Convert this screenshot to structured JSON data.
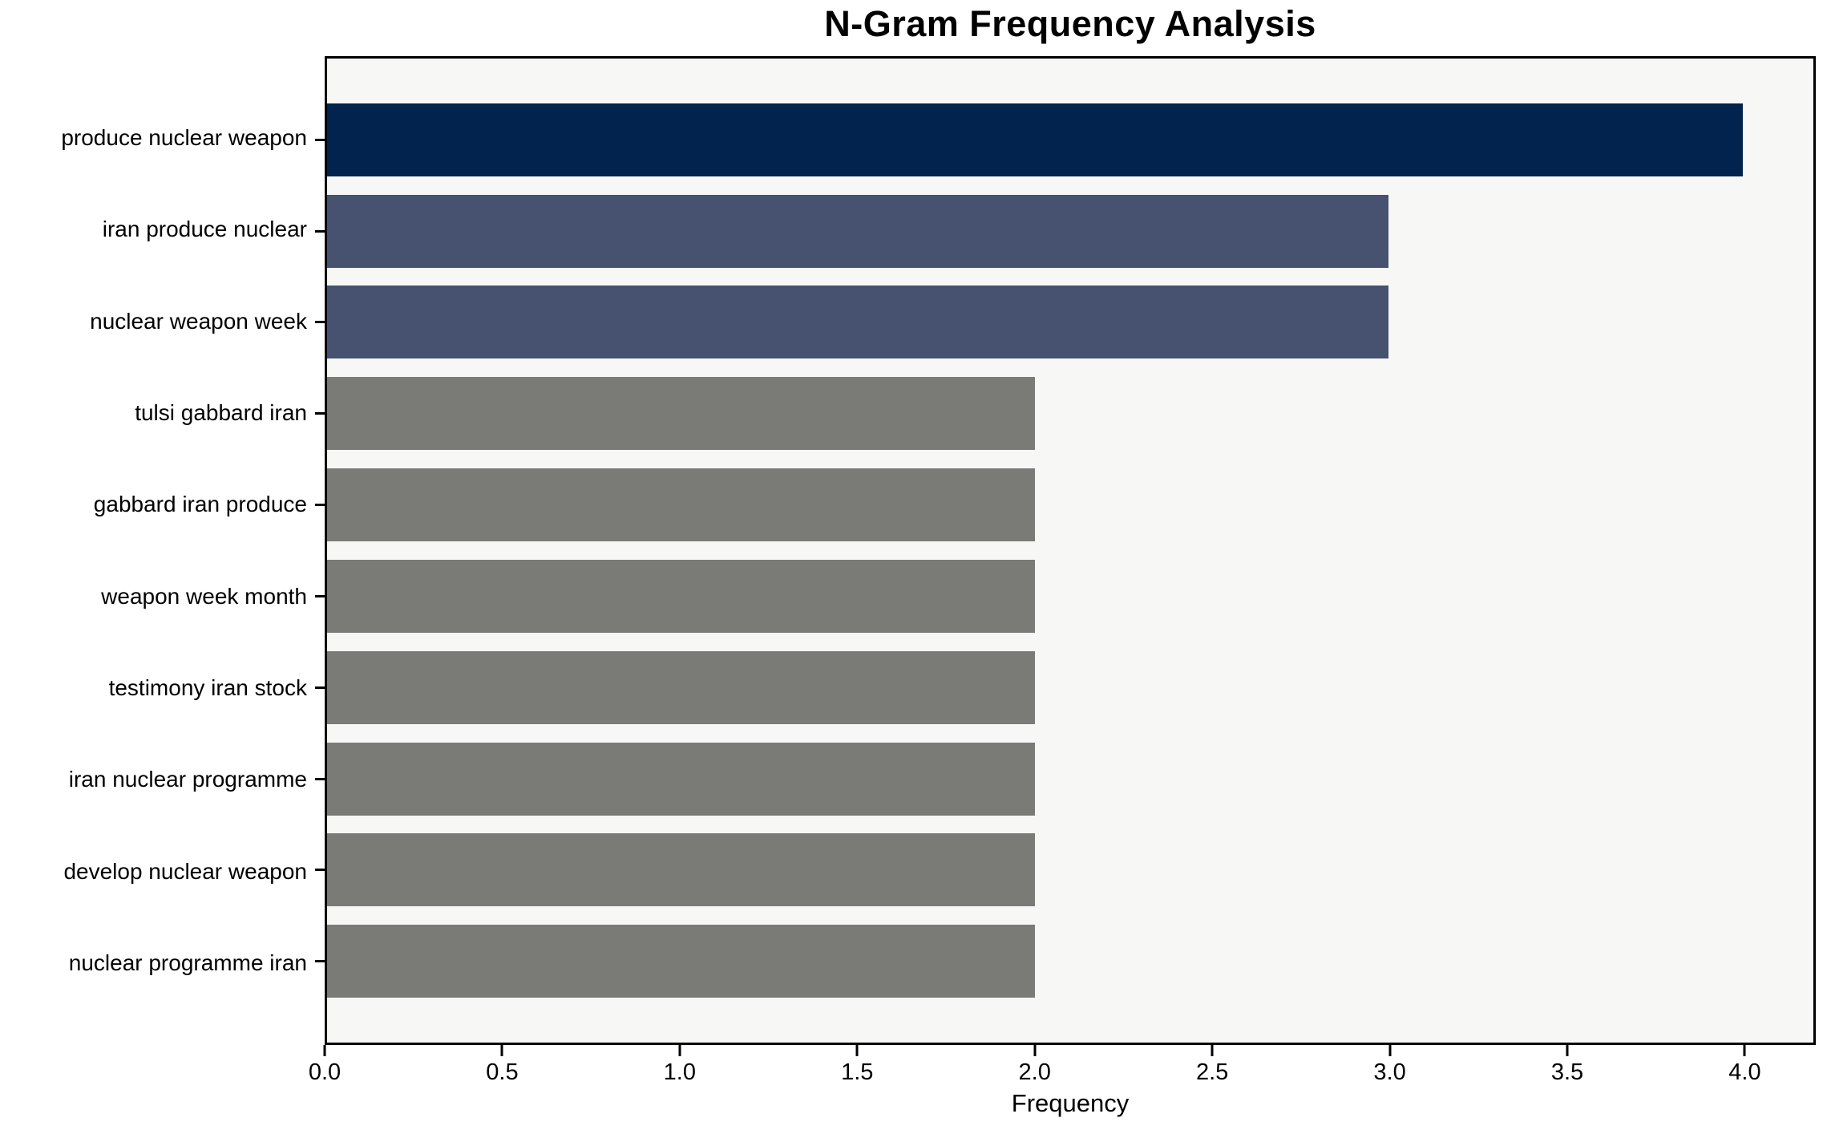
{
  "chart_data": {
    "type": "bar",
    "orientation": "horizontal",
    "title": "N-Gram Frequency Analysis",
    "xlabel": "Frequency",
    "ylabel": "",
    "categories": [
      "produce nuclear weapon",
      "iran produce nuclear",
      "nuclear weapon week",
      "tulsi gabbard iran",
      "gabbard iran produce",
      "weapon week month",
      "testimony iran stock",
      "iran nuclear programme",
      "develop nuclear weapon",
      "nuclear programme iran"
    ],
    "values": [
      4,
      3,
      3,
      2,
      2,
      2,
      2,
      2,
      2,
      2
    ],
    "bar_colors": [
      "#02234d",
      "#46526f",
      "#46526f",
      "#7a7a77",
      "#7a7a77",
      "#7a7a77",
      "#7a7a77",
      "#7a7a77",
      "#7a7a77",
      "#7a7a77"
    ],
    "xlim": [
      0,
      4.2
    ],
    "xticks": [
      "0.0",
      "0.5",
      "1.0",
      "1.5",
      "2.0",
      "2.5",
      "3.0",
      "3.5",
      "4.0"
    ],
    "grid": false,
    "legend": null,
    "plot_background": "#f7f7f6",
    "figure_background": "#ffffff",
    "spine_color": "#000000",
    "bar_thickness_fraction": 0.8,
    "y_units_span": 10.78,
    "y_first_center": 0.89
  }
}
